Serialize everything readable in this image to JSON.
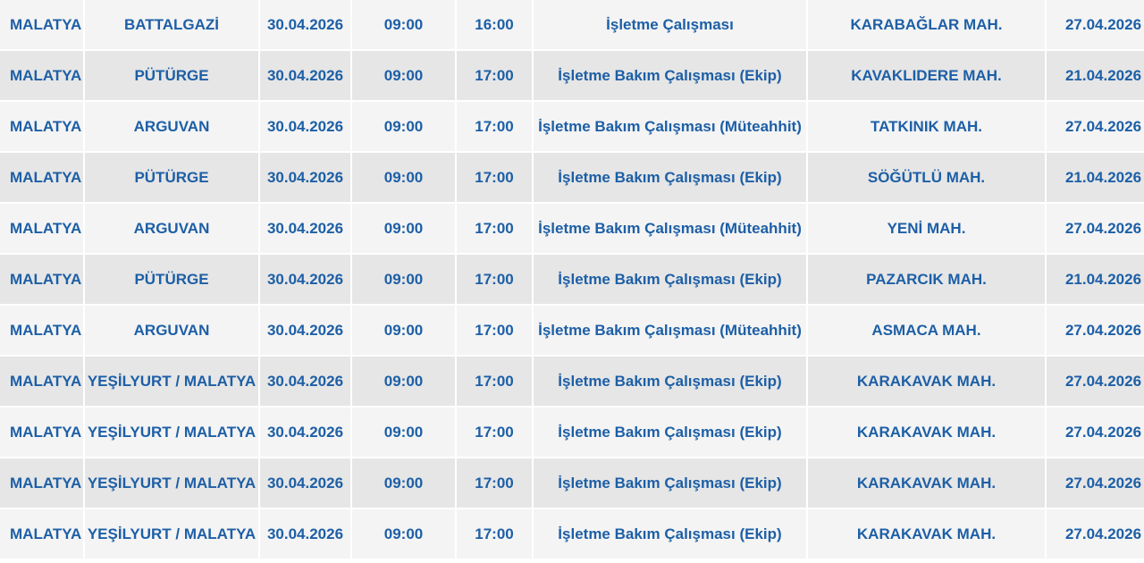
{
  "table": {
    "rows": [
      [
        "MALATYA",
        "BATTALGAZİ",
        "30.04.2026",
        "09:00",
        "16:00",
        "İşletme Çalışması",
        "KARABAĞLAR MAH.",
        "27.04.2026"
      ],
      [
        "MALATYA",
        "PÜTÜRGE",
        "30.04.2026",
        "09:00",
        "17:00",
        "İşletme Bakım Çalışması (Ekip)",
        "KAVAKLIDERE MAH.",
        "21.04.2026"
      ],
      [
        "MALATYA",
        "ARGUVAN",
        "30.04.2026",
        "09:00",
        "17:00",
        "İşletme Bakım Çalışması (Müteahhit)",
        "TATKINIK MAH.",
        "27.04.2026"
      ],
      [
        "MALATYA",
        "PÜTÜRGE",
        "30.04.2026",
        "09:00",
        "17:00",
        "İşletme Bakım Çalışması (Ekip)",
        "SÖĞÜTLÜ MAH.",
        "21.04.2026"
      ],
      [
        "MALATYA",
        "ARGUVAN",
        "30.04.2026",
        "09:00",
        "17:00",
        "İşletme Bakım Çalışması (Müteahhit)",
        "YENİ MAH.",
        "27.04.2026"
      ],
      [
        "MALATYA",
        "PÜTÜRGE",
        "30.04.2026",
        "09:00",
        "17:00",
        "İşletme Bakım Çalışması (Ekip)",
        "PAZARCIK MAH.",
        "21.04.2026"
      ],
      [
        "MALATYA",
        "ARGUVAN",
        "30.04.2026",
        "09:00",
        "17:00",
        "İşletme Bakım Çalışması (Müteahhit)",
        "ASMACA MAH.",
        "27.04.2026"
      ],
      [
        "MALATYA",
        "YEŞİLYURT / MALATYA",
        "30.04.2026",
        "09:00",
        "17:00",
        "İşletme Bakım Çalışması (Ekip)",
        "KARAKAVAK MAH.",
        "27.04.2026"
      ],
      [
        "MALATYA",
        "YEŞİLYURT / MALATYA",
        "30.04.2026",
        "09:00",
        "17:00",
        "İşletme Bakım Çalışması (Ekip)",
        "KARAKAVAK MAH.",
        "27.04.2026"
      ],
      [
        "MALATYA",
        "YEŞİLYURT / MALATYA",
        "30.04.2026",
        "09:00",
        "17:00",
        "İşletme Bakım Çalışması (Ekip)",
        "KARAKAVAK MAH.",
        "27.04.2026"
      ],
      [
        "MALATYA",
        "YEŞİLYURT / MALATYA",
        "30.04.2026",
        "09:00",
        "17:00",
        "İşletme Bakım Çalışması (Ekip)",
        "KARAKAVAK MAH.",
        "27.04.2026"
      ]
    ]
  },
  "colors": {
    "text": "#1d5fa6",
    "row_odd": "#f4f4f4",
    "row_even": "#e6e6e6"
  }
}
